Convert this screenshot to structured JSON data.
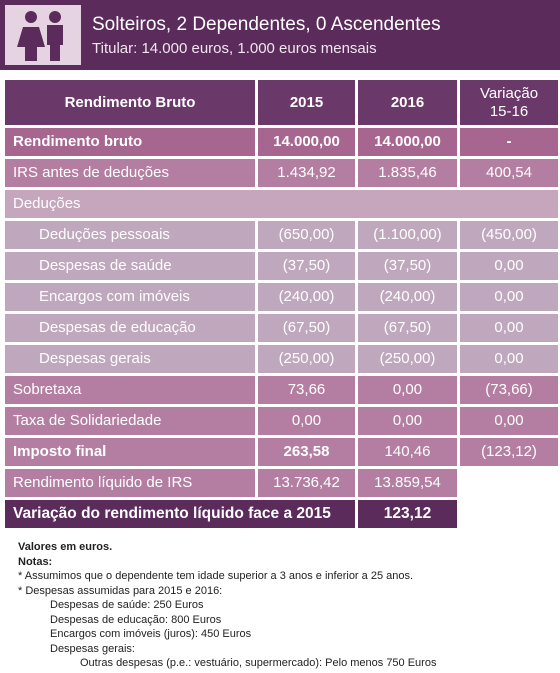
{
  "header": {
    "title": "Solteiros, 2 Dependentes, 0 Ascendentes",
    "subtitle": "Titular: 14.000 euros, 1.000 euros mensais"
  },
  "table": {
    "columns": [
      "Rendimento Bruto",
      "2015",
      "2016",
      "Variação 15-16"
    ],
    "rows": [
      [
        "Rendimento bruto",
        "14.000,00",
        "14.000,00",
        "-"
      ],
      [
        "IRS antes de deduções",
        "1.434,92",
        "1.835,46",
        "400,54"
      ],
      [
        "Deduções"
      ],
      [
        "Deduções pessoais",
        "(650,00)",
        "(1.100,00)",
        "(450,00)"
      ],
      [
        "Despesas de saúde",
        "(37,50)",
        "(37,50)",
        "0,00"
      ],
      [
        "Encargos com imóveis",
        "(240,00)",
        "(240,00)",
        "0,00"
      ],
      [
        "Despesas de educação",
        "(67,50)",
        "(67,50)",
        "0,00"
      ],
      [
        "Despesas gerais",
        "(250,00)",
        "(250,00)",
        "0,00"
      ],
      [
        "Sobretaxa",
        "73,66",
        "0,00",
        "(73,66)"
      ],
      [
        "Taxa de Solidariedade",
        "0,00",
        "0,00",
        "0,00"
      ],
      [
        "Imposto final",
        "263,58",
        "140,46",
        "(123,12)"
      ],
      [
        "Rendimento líquido de IRS",
        "13.736,42",
        "13.859,54"
      ],
      [
        "Variação do rendimento líquido face a 2015",
        "123,12"
      ]
    ]
  },
  "notes": [
    "Valores em euros.",
    "Notas:",
    "* Assumimos que o dependente tem idade superior a 3 anos e inferior a 25 anos.",
    "* Despesas assumidas para 2015 e 2016:",
    "Despesas de saúde: 250 Euros",
    "Despesas de educação: 800 Euros",
    "Encargos com imóveis (juros): 450 Euros",
    "Despesas gerais:",
    "Outras despesas (p.e.: vestuário, supermercado): Pelo menos 750 Euros"
  ]
}
